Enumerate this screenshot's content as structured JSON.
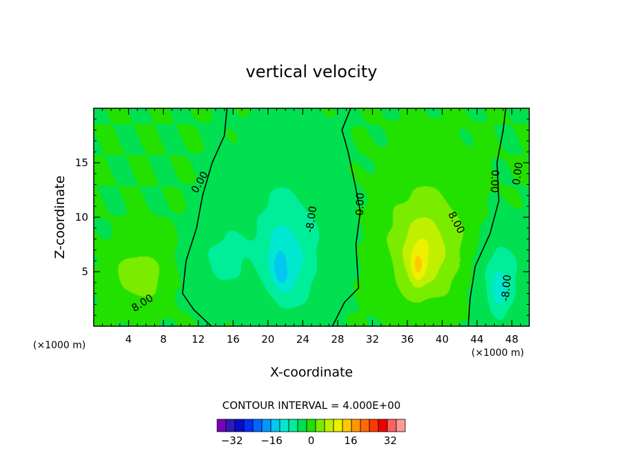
{
  "chart_data": {
    "type": "contour",
    "title": "vertical velocity",
    "xlabel": "X-coordinate",
    "ylabel": "Z-coordinate",
    "x_unit_left": "(×1000 m)",
    "x_unit_right": "(×1000 m)",
    "xlim": [
      0,
      50
    ],
    "ylim": [
      0,
      20
    ],
    "x_ticks": [
      4,
      8,
      12,
      16,
      20,
      24,
      28,
      32,
      36,
      40,
      44,
      48
    ],
    "x_tick_labels": [
      "4",
      "8",
      "12",
      "16",
      "20",
      "24",
      "28",
      "32",
      "36",
      "40",
      "44",
      "48"
    ],
    "y_ticks": [
      5,
      10,
      15
    ],
    "y_tick_labels": [
      "5",
      "10",
      "15"
    ],
    "contour_interval_label": "CONTOUR INTERVAL = 4.000E+00",
    "contour_labels": [
      {
        "text": "0.00",
        "x": 12.2,
        "y": 13.2,
        "rot": -60
      },
      {
        "text": "-8.00",
        "x": 25.0,
        "y": 9.8,
        "rot": -82
      },
      {
        "text": "0.00",
        "x": 30.6,
        "y": 11.2,
        "rot": -88
      },
      {
        "text": "8.00",
        "x": 41.6,
        "y": 9.5,
        "rot": 62
      },
      {
        "text": "0.00",
        "x": 46.0,
        "y": 13.3,
        "rot": 92
      },
      {
        "text": "0.00",
        "x": 48.7,
        "y": 14.0,
        "rot": -82
      },
      {
        "text": "8.00",
        "x": 5.6,
        "y": 2.1,
        "rot": -32
      },
      {
        "text": "-8.00",
        "x": 47.4,
        "y": 3.5,
        "rot": -85
      }
    ],
    "colorbar": {
      "levels": [
        -36,
        -32,
        -28,
        -24,
        -20,
        -16,
        -12,
        -8,
        -4,
        0,
        4,
        8,
        12,
        16,
        20,
        24,
        28,
        32,
        36
      ],
      "tick_values": [
        -32,
        -16,
        0,
        16,
        32
      ],
      "tick_labels": [
        "−32",
        "−16",
        "0",
        "16",
        "32"
      ],
      "colors": [
        "#7a00b8",
        "#2e1ab8",
        "#0a0acc",
        "#0030f0",
        "#0066ff",
        "#0098ff",
        "#00c8f0",
        "#00e8d0",
        "#00ee99",
        "#00e050",
        "#22e000",
        "#7aec00",
        "#c0f000",
        "#eef000",
        "#ffc800",
        "#ff9800",
        "#ff6a00",
        "#ff3800",
        "#f00000",
        "#ff6060",
        "#ff9898"
      ]
    },
    "cells": [
      {
        "x": 5.2,
        "y": 4.6,
        "rx": 3.4,
        "ry": 3.0,
        "w": 6.5,
        "rot": 5
      },
      {
        "x": 14.6,
        "y": 6.0,
        "rx": 3.8,
        "ry": 3.6,
        "w": -4.5,
        "rot": 0
      },
      {
        "x": 22.3,
        "y": 9.5,
        "rx": 6.4,
        "ry": 7.8,
        "w": -4.0,
        "rot": 0
      },
      {
        "x": 22.3,
        "y": 6.0,
        "rx": 2.8,
        "ry": 4.6,
        "w": -7.0,
        "rot": 8
      },
      {
        "x": 21.4,
        "y": 5.0,
        "rx": 1.0,
        "ry": 2.2,
        "w": -6.0,
        "rot": 8
      },
      {
        "x": 38.2,
        "y": 8.4,
        "rx": 5.6,
        "ry": 6.4,
        "w": 6.5,
        "rot": 0
      },
      {
        "x": 37.8,
        "y": 6.2,
        "rx": 3.0,
        "ry": 3.6,
        "w": 6.5,
        "rot": 0
      },
      {
        "x": 37.2,
        "y": 5.4,
        "rx": 0.8,
        "ry": 1.7,
        "w": 6.0,
        "rot": 0
      },
      {
        "x": 46.6,
        "y": 4.8,
        "rx": 3.0,
        "ry": 4.6,
        "w": -6.0,
        "rot": 0
      },
      {
        "x": 46.5,
        "y": 3.2,
        "rx": 1.1,
        "ry": 2.2,
        "w": -6.0,
        "rot": 0
      }
    ],
    "zero_lines": [
      [
        [
          13.5,
          0
        ],
        [
          11.5,
          1.5
        ],
        [
          10.2,
          3
        ],
        [
          10.6,
          6
        ],
        [
          11.8,
          9
        ],
        [
          12.5,
          12
        ],
        [
          13.6,
          15
        ],
        [
          15,
          17.5
        ],
        [
          15.3,
          20
        ]
      ],
      [
        [
          27.4,
          0
        ],
        [
          28.8,
          2.2
        ],
        [
          30.4,
          3.5
        ],
        [
          30.1,
          7.5
        ],
        [
          30.6,
          10.5
        ],
        [
          30.0,
          13
        ],
        [
          29.2,
          16
        ],
        [
          28.5,
          18
        ],
        [
          29.5,
          20
        ]
      ],
      [
        [
          43.0,
          0
        ],
        [
          43.2,
          2.5
        ],
        [
          43.8,
          5.5
        ],
        [
          45.5,
          8.5
        ],
        [
          46.5,
          11.5
        ],
        [
          46.3,
          15
        ],
        [
          47.0,
          18
        ],
        [
          47.3,
          20
        ]
      ]
    ]
  }
}
